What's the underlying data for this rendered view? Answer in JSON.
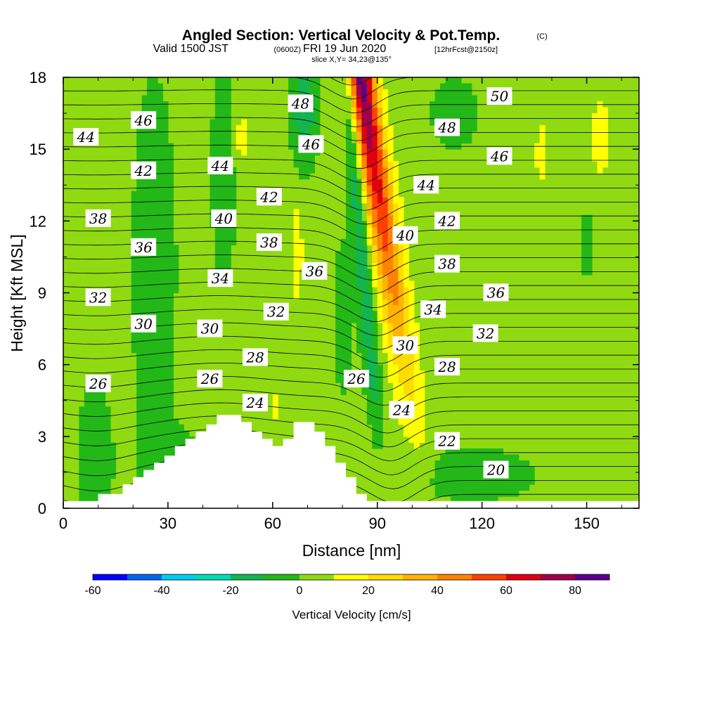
{
  "title": {
    "main": "Angled Section: Vertical Velocity & Pot.Temp.",
    "main_unit": "(C)",
    "valid_prefix": "Valid 1500 JST",
    "valid_utc": "(0600Z)",
    "valid_date": "FRI 19 Jun 2020",
    "forecast_info": "[12hrFcst@2150z]",
    "slice": "slice X,Y= 34,23@135°"
  },
  "chart_data": {
    "type": "heatmap",
    "xlabel": "Distance [nm]",
    "ylabel": "Height [Kft MSL]",
    "xlim": [
      0,
      165
    ],
    "ylim": [
      0,
      18
    ],
    "x_ticks": [
      "0",
      "30",
      "60",
      "90",
      "120",
      "150"
    ],
    "x_tick_values": [
      0,
      30,
      60,
      90,
      120,
      150
    ],
    "y_ticks": [
      "0",
      "3",
      "6",
      "9",
      "12",
      "15",
      "18"
    ],
    "y_tick_values": [
      0,
      3,
      6,
      9,
      12,
      15,
      18
    ],
    "grid": false,
    "colorbar": {
      "label": "Vertical Velocity [cm/s]",
      "ticks": [
        "-60",
        "-40",
        "-20",
        "0",
        "20",
        "40",
        "60",
        "80"
      ],
      "tick_values": [
        -60,
        -40,
        -20,
        0,
        20,
        40,
        60,
        80
      ],
      "min": -60,
      "max": 90,
      "bin_width": 10,
      "colors": [
        "#0000ff",
        "#0066ee",
        "#00ccf0",
        "#00dcb4",
        "#14b450",
        "#23b818",
        "#90da12",
        "#ffff00",
        "#ffdc00",
        "#ffb400",
        "#ff8200",
        "#ff4000",
        "#e00010",
        "#a0004a",
        "#5a008c"
      ]
    },
    "terrain": [
      [
        0,
        0.3
      ],
      [
        10,
        0.3
      ],
      [
        10,
        0.6
      ],
      [
        17,
        0.6
      ],
      [
        17,
        1.0
      ],
      [
        20,
        1.0
      ],
      [
        20,
        1.3
      ],
      [
        23,
        1.3
      ],
      [
        23,
        1.6
      ],
      [
        26,
        1.6
      ],
      [
        26,
        1.9
      ],
      [
        29,
        1.9
      ],
      [
        29,
        2.2
      ],
      [
        32,
        2.2
      ],
      [
        32,
        2.6
      ],
      [
        35,
        2.6
      ],
      [
        35,
        2.9
      ],
      [
        38,
        2.9
      ],
      [
        38,
        3.2
      ],
      [
        41,
        3.2
      ],
      [
        41,
        3.5
      ],
      [
        44,
        3.5
      ],
      [
        44,
        3.9
      ],
      [
        51,
        3.9
      ],
      [
        51,
        3.6
      ],
      [
        54,
        3.6
      ],
      [
        54,
        3.2
      ],
      [
        57,
        3.2
      ],
      [
        57,
        2.9
      ],
      [
        60,
        2.9
      ],
      [
        60,
        2.6
      ],
      [
        63,
        2.6
      ],
      [
        63,
        2.9
      ],
      [
        66,
        2.9
      ],
      [
        66,
        3.6
      ],
      [
        72,
        3.6
      ],
      [
        72,
        3.2
      ],
      [
        75,
        3.2
      ],
      [
        75,
        2.6
      ],
      [
        78,
        2.6
      ],
      [
        78,
        1.9
      ],
      [
        81,
        1.9
      ],
      [
        81,
        1.3
      ],
      [
        84,
        1.3
      ],
      [
        84,
        0.6
      ],
      [
        87,
        0.6
      ],
      [
        87,
        0.3
      ],
      [
        165,
        0.3
      ]
    ],
    "contour_labels": [
      {
        "text": "46",
        "x": 23,
        "y": 16.2
      },
      {
        "text": "44",
        "x": 6.5,
        "y": 15.5
      },
      {
        "text": "42",
        "x": 23,
        "y": 14.1
      },
      {
        "text": "44",
        "x": 45,
        "y": 14.3
      },
      {
        "text": "48",
        "x": 68,
        "y": 16.9
      },
      {
        "text": "46",
        "x": 71,
        "y": 15.2
      },
      {
        "text": "42",
        "x": 59,
        "y": 13.0
      },
      {
        "text": "50",
        "x": 125,
        "y": 17.2
      },
      {
        "text": "48",
        "x": 110,
        "y": 15.9
      },
      {
        "text": "46",
        "x": 125,
        "y": 14.7
      },
      {
        "text": "44",
        "x": 104,
        "y": 13.5
      },
      {
        "text": "38",
        "x": 10,
        "y": 12.1
      },
      {
        "text": "40",
        "x": 46,
        "y": 12.1
      },
      {
        "text": "42",
        "x": 110,
        "y": 12.0
      },
      {
        "text": "40",
        "x": 98,
        "y": 11.4
      },
      {
        "text": "36",
        "x": 23,
        "y": 10.9
      },
      {
        "text": "38",
        "x": 59,
        "y": 11.1
      },
      {
        "text": "38",
        "x": 110,
        "y": 10.2
      },
      {
        "text": "36",
        "x": 72,
        "y": 9.9
      },
      {
        "text": "34",
        "x": 45,
        "y": 9.6
      },
      {
        "text": "36",
        "x": 124,
        "y": 9.0
      },
      {
        "text": "32",
        "x": 10,
        "y": 8.8
      },
      {
        "text": "34",
        "x": 106,
        "y": 8.3
      },
      {
        "text": "32",
        "x": 61,
        "y": 8.2
      },
      {
        "text": "30",
        "x": 23,
        "y": 7.7
      },
      {
        "text": "30",
        "x": 42,
        "y": 7.5
      },
      {
        "text": "32",
        "x": 121,
        "y": 7.3
      },
      {
        "text": "30",
        "x": 98,
        "y": 6.8
      },
      {
        "text": "28",
        "x": 55,
        "y": 6.3
      },
      {
        "text": "28",
        "x": 110,
        "y": 5.9
      },
      {
        "text": "26",
        "x": 10,
        "y": 5.2
      },
      {
        "text": "26",
        "x": 42,
        "y": 5.4
      },
      {
        "text": "26",
        "x": 84,
        "y": 5.4
      },
      {
        "text": "24",
        "x": 55,
        "y": 4.4
      },
      {
        "text": "24",
        "x": 97,
        "y": 4.1
      },
      {
        "text": "22",
        "x": 110,
        "y": 2.8
      },
      {
        "text": "20",
        "x": 124,
        "y": 1.6
      }
    ]
  }
}
